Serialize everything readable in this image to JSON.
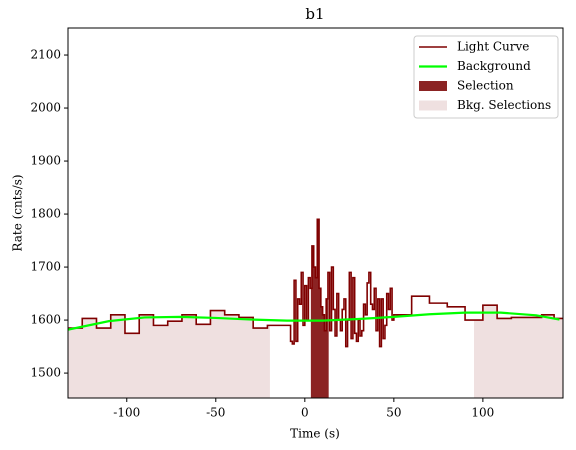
{
  "chart_data": {
    "type": "lightcurve",
    "title": "b1",
    "x_label": "Time (s)",
    "y_label": "Rate (cnts/s)",
    "xlim": [
      -133,
      145
    ],
    "ylim": [
      1453,
      2151
    ],
    "xticks": [
      -100,
      -50,
      0,
      50,
      100
    ],
    "yticks": [
      1500,
      1600,
      1700,
      1800,
      1900,
      2000,
      2100
    ],
    "legend": "upper right",
    "series": [
      {
        "name": "Light Curve",
        "color": "#7f0000",
        "bins": [
          -133,
          -125,
          -117,
          -109,
          -101,
          -93,
          -85,
          -77,
          -69,
          -61,
          -53,
          -45,
          -37,
          -29,
          -21,
          -8,
          -7,
          -6,
          -5,
          -4,
          -3,
          -2,
          -1,
          0,
          1,
          2,
          3,
          4,
          5,
          6,
          7,
          8,
          9,
          10,
          11,
          12,
          13,
          14,
          15,
          16,
          17,
          18,
          19,
          20,
          21,
          22,
          23,
          24,
          25,
          26,
          27,
          28,
          29,
          30,
          31,
          32,
          33,
          34,
          35,
          36,
          37,
          38,
          39,
          40,
          41,
          42,
          43,
          44,
          45,
          46,
          47,
          48,
          49,
          50,
          60,
          70,
          80,
          90,
          100,
          108,
          116,
          133,
          140,
          145
        ],
        "values": [
          1585,
          1603,
          1585,
          1610,
          1575,
          1610,
          1590,
          1598,
          1610,
          1592,
          1618,
          1610,
          1605,
          1585,
          1590,
          1560,
          1555,
          1675,
          1560,
          1640,
          1630,
          1690,
          1590,
          1665,
          1600,
          1680,
          1660,
          1740,
          1700,
          1680,
          1790,
          1660,
          1625,
          1610,
          1580,
          1640,
          1690,
          1580,
          1700,
          1620,
          1570,
          1650,
          1600,
          1580,
          1620,
          1640,
          1550,
          1600,
          1690,
          1565,
          1680,
          1575,
          1560,
          1600,
          1570,
          1580,
          1630,
          1610,
          1670,
          1690,
          1630,
          1620,
          1660,
          1580,
          1640,
          1550,
          1640,
          1565,
          1590,
          1650,
          1620,
          1660,
          1600,
          1610,
          1645,
          1632,
          1625,
          1600,
          1628,
          1603,
          1605,
          1610,
          1603
        ]
      },
      {
        "name": "Background",
        "color": "#00ff00",
        "x": [
          -133,
          -110,
          -90,
          -70,
          -50,
          -30,
          -10,
          10,
          30,
          50,
          70,
          90,
          110,
          130,
          143
        ],
        "values": [
          1582,
          1598,
          1605,
          1606,
          1604,
          1601,
          1599,
          1599,
          1602,
          1606,
          1611,
          1614,
          1614,
          1609,
          1601
        ]
      },
      {
        "name": "Selection",
        "color": "#8b2323",
        "ranges": [
          [
            3.4,
            13.4
          ]
        ]
      },
      {
        "name": "Bkg. Selections",
        "color": "#efe0e0",
        "ranges": [
          [
            -133,
            -19.6
          ],
          [
            95,
            145
          ]
        ]
      }
    ]
  }
}
